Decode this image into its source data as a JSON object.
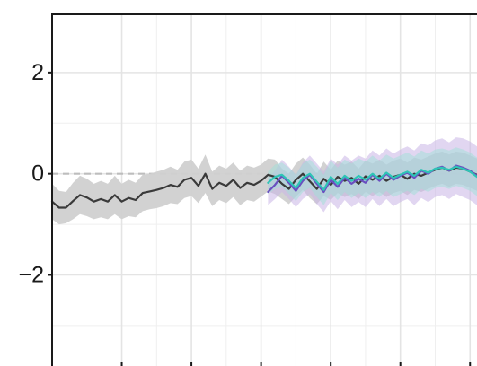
{
  "chart_data": {
    "type": "line",
    "title": "",
    "xlabel": "",
    "ylabel": "",
    "xlim": [
      0,
      61
    ],
    "ylim": [
      -3.8,
      3.15
    ],
    "yticks": [
      {
        "value": 2,
        "label": "2"
      },
      {
        "value": 0,
        "label": "0"
      },
      {
        "value": -2,
        "label": "−2"
      }
    ],
    "y_minor_gridlines": [
      3,
      1,
      -1,
      -3
    ],
    "x_gridlines": [
      10,
      20,
      30,
      40,
      50,
      60
    ],
    "x_minor_gridlines": [
      0,
      15,
      25,
      35,
      45,
      55
    ],
    "grid": true,
    "reference_line": {
      "y": 0,
      "style": "dashed"
    },
    "colors": {
      "observed": "#3a3a3a",
      "observed_band": "#d0d0d0",
      "forecast_a": "#6a4fc0",
      "forecast_a_band": "#c9b4e6",
      "forecast_b": "#2ec4b6",
      "forecast_b_band": "#9fe0d8",
      "grid": "#e4e4e4",
      "reference": "#bdbdbd"
    },
    "series": [
      {
        "key": "observed",
        "x": [
          0,
          1,
          2,
          3,
          4,
          5,
          6,
          7,
          8,
          9,
          10,
          11,
          12,
          13,
          14,
          15,
          16,
          17,
          18,
          19,
          20,
          21,
          22,
          23,
          24,
          25,
          26,
          27,
          28,
          29,
          30,
          31,
          32,
          33,
          34,
          35,
          36,
          37,
          38,
          39,
          40,
          41,
          42,
          43,
          44,
          45,
          46,
          47,
          48,
          49,
          50,
          51,
          52,
          53,
          54,
          55,
          56,
          57,
          58,
          59,
          60,
          61
        ],
        "y": [
          -0.55,
          -0.67,
          -0.67,
          -0.54,
          -0.42,
          -0.47,
          -0.55,
          -0.5,
          -0.55,
          -0.42,
          -0.55,
          -0.48,
          -0.52,
          -0.38,
          -0.35,
          -0.32,
          -0.28,
          -0.22,
          -0.26,
          -0.12,
          -0.08,
          -0.24,
          0.0,
          -0.3,
          -0.18,
          -0.24,
          -0.12,
          -0.28,
          -0.18,
          -0.22,
          -0.14,
          -0.02,
          -0.06,
          -0.2,
          -0.3,
          -0.12,
          0.0,
          -0.15,
          -0.3,
          -0.1,
          -0.22,
          -0.06,
          -0.14,
          -0.08,
          -0.2,
          -0.05,
          -0.12,
          -0.04,
          -0.14,
          -0.06,
          -0.02,
          -0.1,
          0.0,
          -0.04,
          0.02,
          0.08,
          0.12,
          0.06,
          0.12,
          0.1,
          0.04,
          -0.02
        ],
        "lower": [
          -0.9,
          -1.0,
          -0.98,
          -0.9,
          -0.8,
          -0.84,
          -0.9,
          -0.86,
          -0.9,
          -0.8,
          -0.9,
          -0.84,
          -0.86,
          -0.74,
          -0.7,
          -0.68,
          -0.64,
          -0.58,
          -0.6,
          -0.48,
          -0.44,
          -0.58,
          -0.38,
          -0.64,
          -0.52,
          -0.58,
          -0.46,
          -0.62,
          -0.52,
          -0.55,
          -0.45,
          -0.35,
          -0.4,
          -0.5,
          -0.6,
          -0.45,
          -0.32,
          -0.48,
          -0.6,
          -0.44,
          -0.52,
          -0.38,
          -0.46,
          -0.4,
          -0.5,
          -0.36,
          -0.44,
          -0.36,
          -0.46,
          -0.38,
          -0.34,
          -0.42,
          -0.32,
          -0.36,
          -0.3,
          -0.24,
          -0.2,
          -0.26,
          -0.2,
          -0.22,
          -0.28,
          -0.34
        ],
        "upper": [
          -0.2,
          -0.34,
          -0.36,
          -0.18,
          -0.04,
          -0.1,
          -0.2,
          -0.14,
          -0.2,
          -0.04,
          -0.2,
          -0.12,
          -0.18,
          -0.02,
          0.0,
          0.04,
          0.08,
          0.14,
          0.08,
          0.24,
          0.28,
          0.1,
          0.38,
          0.04,
          0.16,
          0.1,
          0.22,
          0.06,
          0.16,
          0.12,
          0.18,
          0.3,
          0.28,
          0.1,
          0.0,
          0.2,
          0.32,
          0.18,
          0.0,
          0.24,
          0.08,
          0.26,
          0.18,
          0.24,
          0.1,
          0.26,
          0.2,
          0.28,
          0.18,
          0.26,
          0.3,
          0.22,
          0.32,
          0.28,
          0.34,
          0.4,
          0.44,
          0.38,
          0.44,
          0.42,
          0.36,
          0.3
        ]
      },
      {
        "key": "forecast_a",
        "x": [
          31,
          32,
          33,
          34,
          35,
          36,
          37,
          38,
          39,
          40,
          41,
          42,
          43,
          44,
          45,
          46,
          47,
          48,
          49,
          50,
          51,
          52,
          53,
          54,
          55,
          56,
          57,
          58,
          59,
          60,
          61
        ],
        "y": [
          -0.36,
          -0.22,
          -0.04,
          -0.18,
          -0.34,
          -0.14,
          -0.02,
          -0.2,
          -0.36,
          -0.12,
          -0.26,
          -0.08,
          -0.2,
          -0.1,
          -0.18,
          -0.02,
          -0.14,
          0.0,
          -0.12,
          -0.04,
          0.02,
          -0.08,
          0.06,
          0.0,
          0.1,
          0.14,
          0.06,
          0.16,
          0.12,
          0.06,
          -0.04
        ],
        "lower": [
          -0.62,
          -0.5,
          -0.36,
          -0.5,
          -0.66,
          -0.5,
          -0.4,
          -0.6,
          -0.76,
          -0.54,
          -0.7,
          -0.52,
          -0.66,
          -0.56,
          -0.66,
          -0.5,
          -0.64,
          -0.5,
          -0.64,
          -0.56,
          -0.5,
          -0.62,
          -0.48,
          -0.56,
          -0.46,
          -0.42,
          -0.5,
          -0.4,
          -0.46,
          -0.52,
          -0.62
        ],
        "upper": [
          -0.1,
          0.06,
          0.28,
          0.14,
          -0.02,
          0.22,
          0.36,
          0.2,
          0.04,
          0.3,
          0.18,
          0.36,
          0.26,
          0.36,
          0.3,
          0.46,
          0.36,
          0.5,
          0.4,
          0.48,
          0.54,
          0.46,
          0.6,
          0.56,
          0.66,
          0.7,
          0.62,
          0.72,
          0.7,
          0.64,
          0.54
        ]
      },
      {
        "key": "forecast_b",
        "x": [
          31,
          32,
          33,
          34,
          35,
          36,
          37,
          38,
          39,
          40,
          41,
          42,
          43,
          44,
          45,
          46,
          47,
          48,
          49,
          50,
          51,
          52,
          53,
          54,
          55,
          56,
          57,
          58,
          59,
          60,
          61
        ],
        "y": [
          -0.18,
          -0.06,
          -0.02,
          -0.14,
          -0.28,
          -0.08,
          0.0,
          -0.16,
          -0.32,
          -0.06,
          -0.2,
          -0.04,
          -0.14,
          -0.04,
          -0.12,
          0.0,
          -0.1,
          0.02,
          -0.08,
          -0.02,
          0.04,
          -0.04,
          0.08,
          0.02,
          0.1,
          0.12,
          0.08,
          0.14,
          0.1,
          0.04,
          -0.06
        ],
        "lower": [
          -0.4,
          -0.3,
          -0.26,
          -0.4,
          -0.54,
          -0.36,
          -0.28,
          -0.46,
          -0.62,
          -0.38,
          -0.52,
          -0.36,
          -0.48,
          -0.38,
          -0.48,
          -0.36,
          -0.46,
          -0.34,
          -0.46,
          -0.4,
          -0.34,
          -0.42,
          -0.3,
          -0.36,
          -0.28,
          -0.26,
          -0.3,
          -0.24,
          -0.28,
          -0.34,
          -0.44
        ],
        "upper": [
          0.04,
          0.18,
          0.22,
          0.12,
          -0.02,
          0.2,
          0.28,
          0.14,
          -0.02,
          0.26,
          0.12,
          0.28,
          0.2,
          0.3,
          0.24,
          0.36,
          0.26,
          0.38,
          0.3,
          0.36,
          0.42,
          0.34,
          0.46,
          0.4,
          0.48,
          0.5,
          0.46,
          0.52,
          0.48,
          0.42,
          0.32
        ]
      }
    ]
  }
}
